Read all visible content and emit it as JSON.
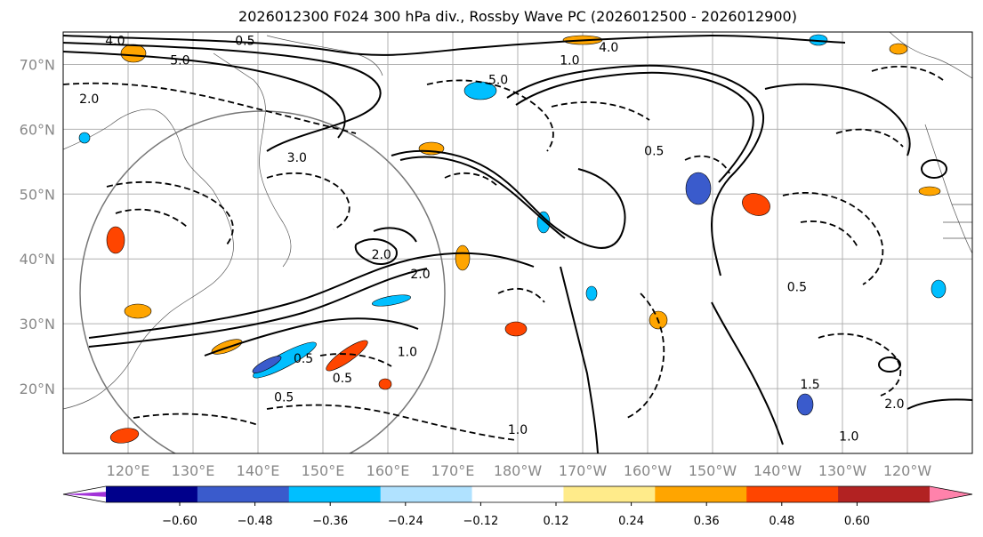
{
  "title": "2026012300 F024 300 hPa div., Rossby Wave PC (2026012500 - 2026012900)",
  "map": {
    "lat_labels": [
      "70°N",
      "60°N",
      "50°N",
      "40°N",
      "30°N",
      "20°N"
    ],
    "lat_values": [
      70,
      60,
      50,
      40,
      30,
      20
    ],
    "lon_labels": [
      "120°E",
      "130°E",
      "140°E",
      "150°E",
      "160°E",
      "170°E",
      "180°W",
      "170°W",
      "160°W",
      "150°W",
      "140°W",
      "130°W",
      "120°W"
    ],
    "contour_labels": [
      {
        "text": "4.0",
        "lon": 118,
        "lat": 73
      },
      {
        "text": "2.0",
        "lon": 114,
        "lat": 64
      },
      {
        "text": "5.0",
        "lon": 128,
        "lat": 70
      },
      {
        "text": "0.5",
        "lon": 138,
        "lat": 73
      },
      {
        "text": "3.0",
        "lon": 146,
        "lat": 55
      },
      {
        "text": "5.0",
        "lon": 177,
        "lat": 67
      },
      {
        "text": "4.0",
        "lon": -166,
        "lat": 72
      },
      {
        "text": "2.0",
        "lon": 159,
        "lat": 40
      },
      {
        "text": "2.0",
        "lon": 165,
        "lat": 37
      },
      {
        "text": "1.0",
        "lon": 163,
        "lat": 25
      },
      {
        "text": "0.5",
        "lon": 153,
        "lat": 21
      },
      {
        "text": "0.5",
        "lon": 144,
        "lat": 18
      },
      {
        "text": "0.5",
        "lon": 147,
        "lat": 24
      },
      {
        "text": "1.0",
        "lon": -180,
        "lat": 13
      },
      {
        "text": "0.5",
        "lon": -159,
        "lat": 56
      },
      {
        "text": "0.5",
        "lon": -137,
        "lat": 35
      },
      {
        "text": "2.0",
        "lon": -122,
        "lat": 17
      },
      {
        "text": "1.0",
        "lon": -129,
        "lat": 12
      },
      {
        "text": "1.5",
        "lon": -135,
        "lat": 20
      },
      {
        "text": "1.0",
        "lon": -172,
        "lat": 70
      }
    ]
  },
  "colorbar": {
    "ticks": [
      "−0.60",
      "−0.48",
      "−0.36",
      "−0.24",
      "−0.12",
      "0.12",
      "0.24",
      "0.36",
      "0.48",
      "0.60"
    ],
    "colors": [
      "#a233d8",
      "#00008b",
      "#3a5bcc",
      "#00bfff",
      "#b0e2ff",
      "#ffffff",
      "#ffeb8a",
      "#ffa500",
      "#ff4500",
      "#b22222",
      "#ff82ab"
    ]
  }
}
